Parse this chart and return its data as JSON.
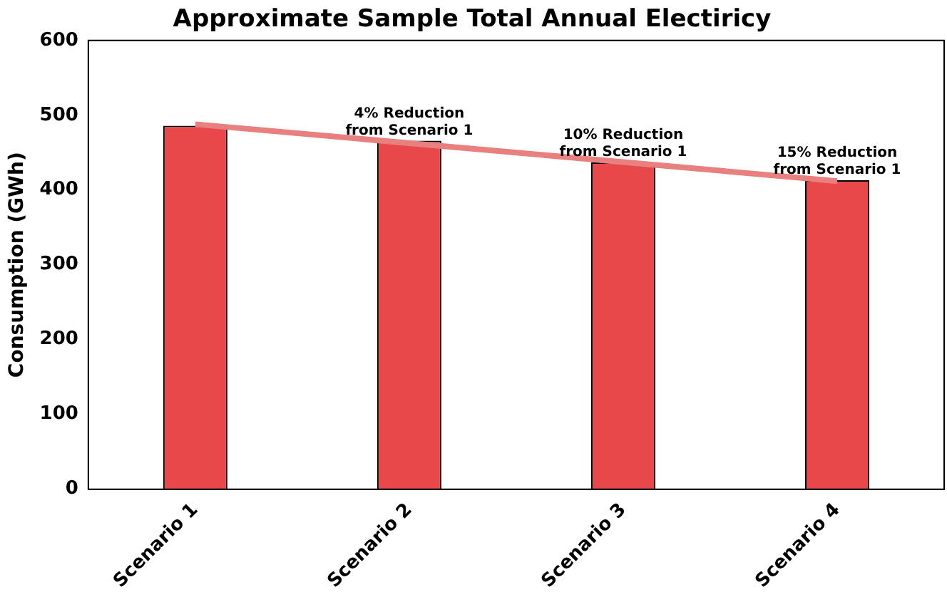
{
  "chart_data": {
    "type": "bar",
    "title": "Approximate Sample Total Annual Electiricy",
    "ylabel": "Consumption (GWh)",
    "categories": [
      "Scenario 1",
      "Scenario 2",
      "Scenario 3",
      "Scenario 4"
    ],
    "series": [
      {
        "color": "#e8484a",
        "values": [
          486,
          466,
          437,
          413
        ]
      },
      {
        "type": "line",
        "color": "#e88080",
        "x": [
          "Scenario 1",
          "Scenario 4"
        ],
        "values": [
          488,
          412
        ]
      }
    ],
    "ylim": [
      0,
      600
    ],
    "yticks": [
      0,
      100,
      200,
      300,
      400,
      500,
      600
    ],
    "grid": false,
    "legend": false,
    "annotations": [
      {
        "text": "4% Reduction\nfrom Scenario 1",
        "x": "Scenario 2",
        "y": 466
      },
      {
        "text": "10% Reduction\nfrom Scenario 1",
        "x": "Scenario 3",
        "y": 437
      },
      {
        "text": "15% Reduction\nfrom Scenario 1",
        "x": "Scenario 4",
        "y": 413
      }
    ]
  }
}
